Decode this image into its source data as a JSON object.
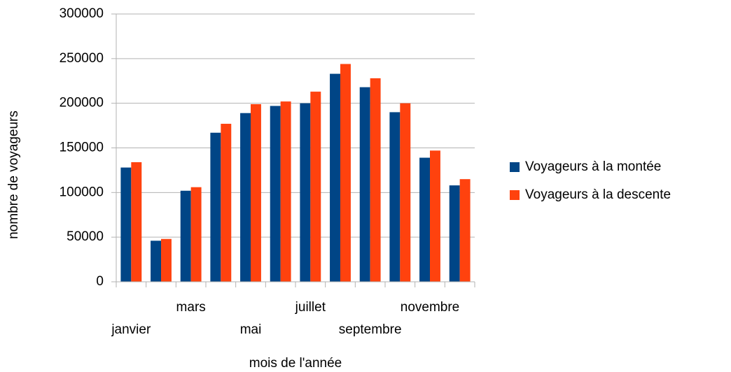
{
  "chart_data": {
    "type": "bar",
    "xlabel": "mois de l'année",
    "ylabel": "nombre de voyageurs",
    "categories": [
      "janvier",
      null,
      "mars",
      null,
      "mai",
      null,
      "juillet",
      null,
      "septembre",
      null,
      "novembre",
      null
    ],
    "series": [
      {
        "name": "Voyageurs à la montée",
        "color": "#004586",
        "values": [
          128000,
          46000,
          102000,
          167000,
          189000,
          197000,
          200000,
          233000,
          218000,
          190000,
          139000,
          108000
        ]
      },
      {
        "name": "Voyageurs à la descente",
        "color": "#ff420e",
        "values": [
          134000,
          48000,
          106000,
          177000,
          199000,
          202000,
          213000,
          244000,
          228000,
          200000,
          147000,
          115000
        ]
      }
    ],
    "ylim": [
      0,
      300000
    ],
    "yticks": [
      0,
      50000,
      100000,
      150000,
      200000,
      250000,
      300000
    ],
    "grid": true,
    "legend": "right"
  }
}
